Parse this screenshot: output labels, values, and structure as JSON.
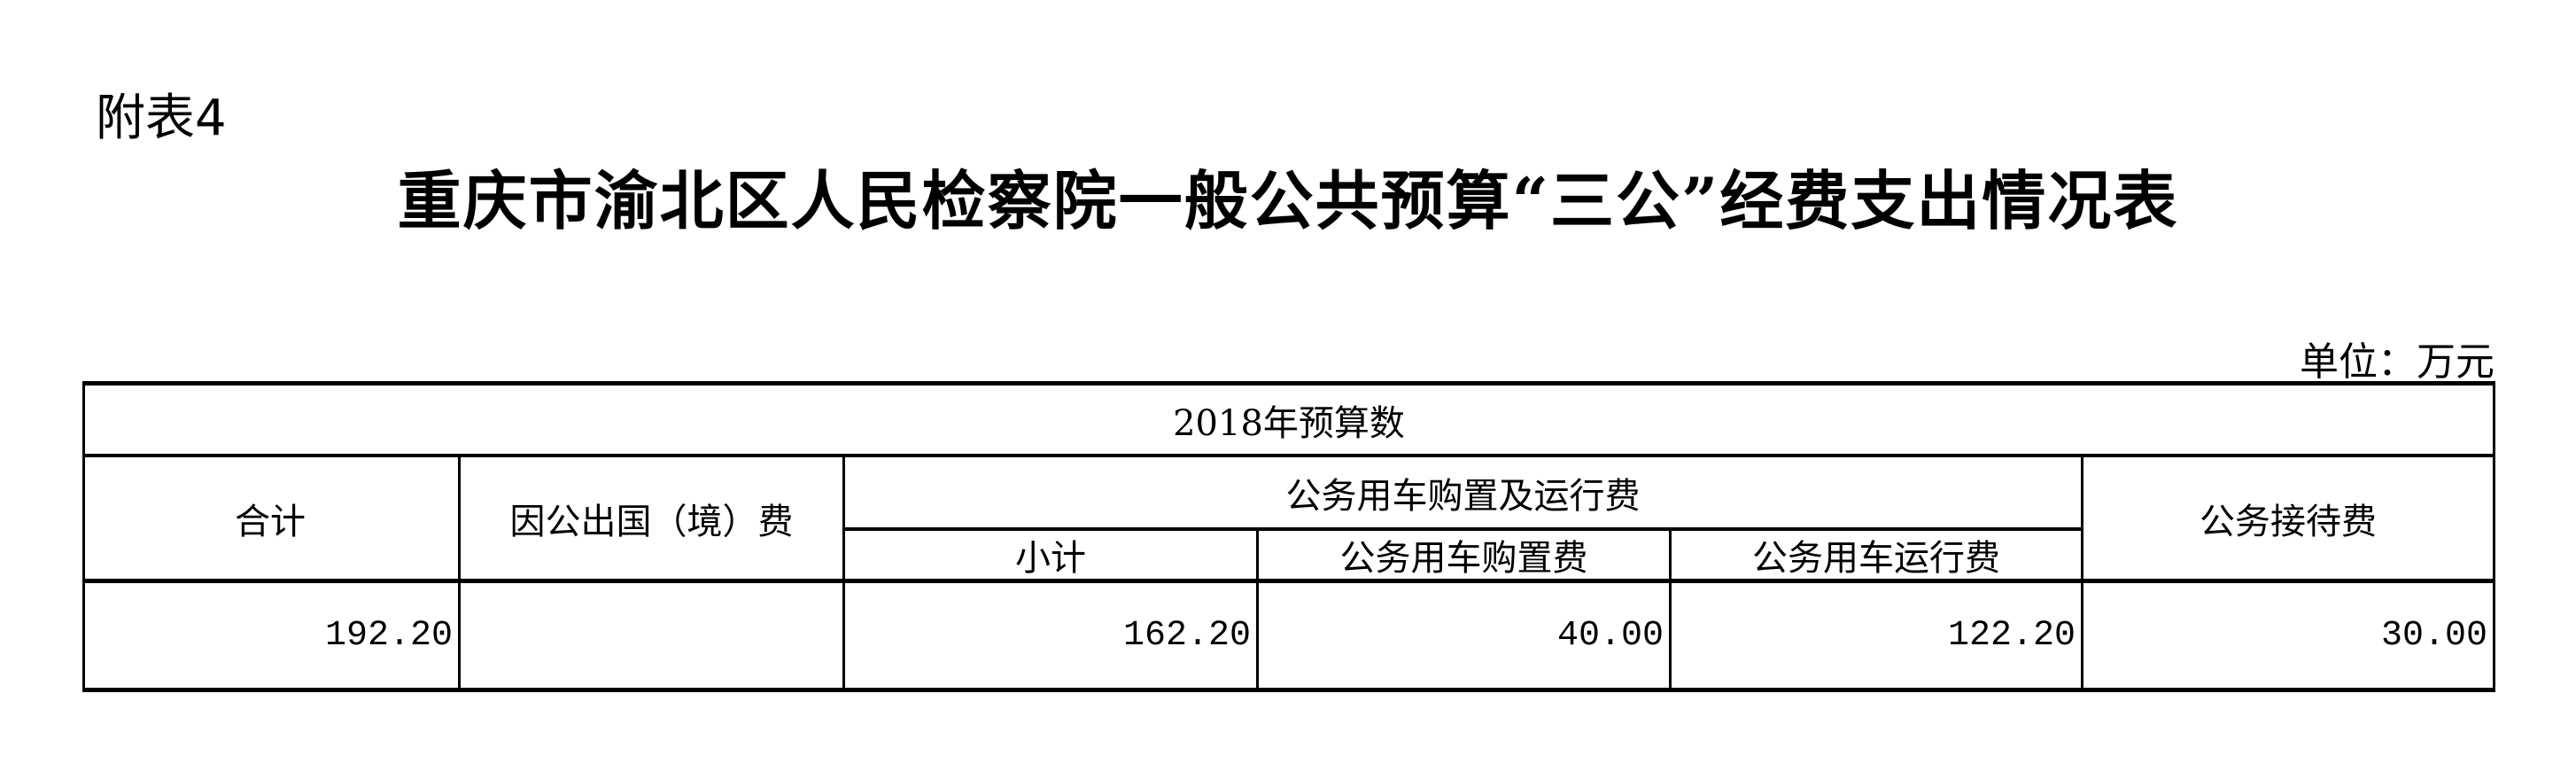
{
  "header": {
    "attachment_label": "附表4",
    "title": "重庆市渝北区人民检察院一般公共预算“三公”经费支出情况表",
    "unit": "单位：万元"
  },
  "table": {
    "group_header": "2018年预算数",
    "columns": {
      "total": "合计",
      "overseas": "因公出国（境）费",
      "vehicle_group": "公务用车购置及运行费",
      "vehicle_subtotal": "小计",
      "vehicle_purchase": "公务用车购置费",
      "vehicle_operation": "公务用车运行费",
      "reception": "公务接待费"
    },
    "row": {
      "total": "192.20",
      "overseas": "",
      "vehicle_subtotal": "162.20",
      "vehicle_purchase": "40.00",
      "vehicle_operation": "122.20",
      "reception": "30.00"
    }
  }
}
